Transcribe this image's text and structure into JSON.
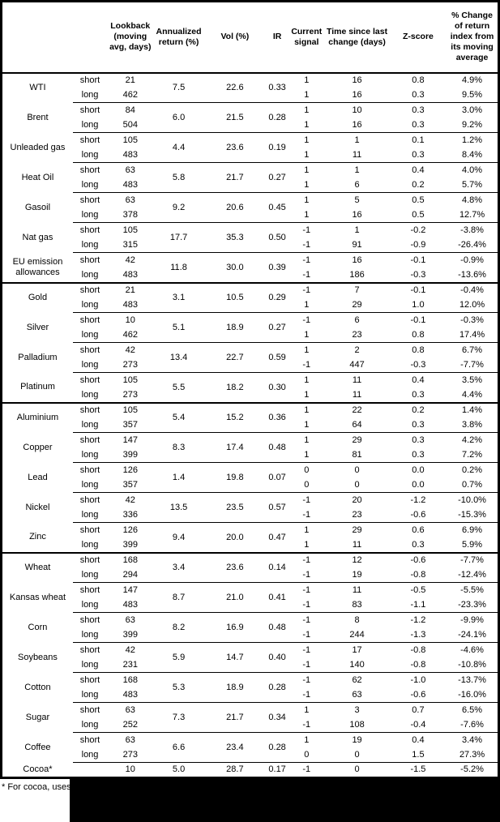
{
  "table": {
    "columns": [
      "",
      "",
      "Lookback (moving avg, days)",
      "Annualized return (%)",
      "Vol (%)",
      "IR",
      "Current signal",
      "Time since last change (days)",
      "Z-score",
      "% Change of return index from its moving average"
    ],
    "commodities": [
      {
        "name": "WTI",
        "section": false,
        "annualized": "7.5",
        "vol": "22.6",
        "ir": "0.33",
        "rows": [
          {
            "pos": "short",
            "lookback": "21",
            "signal": "1",
            "time": "16",
            "zscore": "0.8",
            "pct": "4.9%"
          },
          {
            "pos": "long",
            "lookback": "462",
            "signal": "1",
            "time": "16",
            "zscore": "0.3",
            "pct": "9.5%"
          }
        ]
      },
      {
        "name": "Brent",
        "section": false,
        "annualized": "6.0",
        "vol": "21.5",
        "ir": "0.28",
        "rows": [
          {
            "pos": "short",
            "lookback": "84",
            "signal": "1",
            "time": "10",
            "zscore": "0.3",
            "pct": "3.0%"
          },
          {
            "pos": "long",
            "lookback": "504",
            "signal": "1",
            "time": "16",
            "zscore": "0.3",
            "pct": "9.2%"
          }
        ]
      },
      {
        "name": "Unleaded gas",
        "section": false,
        "annualized": "4.4",
        "vol": "23.6",
        "ir": "0.19",
        "rows": [
          {
            "pos": "short",
            "lookback": "105",
            "signal": "1",
            "time": "1",
            "zscore": "0.1",
            "pct": "1.2%"
          },
          {
            "pos": "long",
            "lookback": "483",
            "signal": "1",
            "time": "11",
            "zscore": "0.3",
            "pct": "8.4%"
          }
        ]
      },
      {
        "name": "Heat Oil",
        "section": false,
        "annualized": "5.8",
        "vol": "21.7",
        "ir": "0.27",
        "rows": [
          {
            "pos": "short",
            "lookback": "63",
            "signal": "1",
            "time": "1",
            "zscore": "0.4",
            "pct": "4.0%"
          },
          {
            "pos": "long",
            "lookback": "483",
            "signal": "1",
            "time": "6",
            "zscore": "0.2",
            "pct": "5.7%"
          }
        ]
      },
      {
        "name": "Gasoil",
        "section": false,
        "annualized": "9.2",
        "vol": "20.6",
        "ir": "0.45",
        "rows": [
          {
            "pos": "short",
            "lookback": "63",
            "signal": "1",
            "time": "5",
            "zscore": "0.5",
            "pct": "4.8%"
          },
          {
            "pos": "long",
            "lookback": "378",
            "signal": "1",
            "time": "16",
            "zscore": "0.5",
            "pct": "12.7%"
          }
        ]
      },
      {
        "name": "Nat gas",
        "section": false,
        "annualized": "17.7",
        "vol": "35.3",
        "ir": "0.50",
        "rows": [
          {
            "pos": "short",
            "lookback": "105",
            "signal": "-1",
            "time": "1",
            "zscore": "-0.2",
            "pct": "-3.8%"
          },
          {
            "pos": "long",
            "lookback": "315",
            "signal": "-1",
            "time": "91",
            "zscore": "-0.9",
            "pct": "-26.4%"
          }
        ]
      },
      {
        "name": "EU emission allowances",
        "section": false,
        "annualized": "11.8",
        "vol": "30.0",
        "ir": "0.39",
        "rows": [
          {
            "pos": "short",
            "lookback": "42",
            "signal": "-1",
            "time": "16",
            "zscore": "-0.1",
            "pct": "-0.9%"
          },
          {
            "pos": "long",
            "lookback": "483",
            "signal": "-1",
            "time": "186",
            "zscore": "-0.3",
            "pct": "-13.6%"
          }
        ]
      },
      {
        "name": "Gold",
        "section": true,
        "annualized": "3.1",
        "vol": "10.5",
        "ir": "0.29",
        "rows": [
          {
            "pos": "short",
            "lookback": "21",
            "signal": "-1",
            "time": "7",
            "zscore": "-0.1",
            "pct": "-0.4%"
          },
          {
            "pos": "long",
            "lookback": "483",
            "signal": "1",
            "time": "29",
            "zscore": "1.0",
            "pct": "12.0%"
          }
        ]
      },
      {
        "name": "Silver",
        "section": false,
        "annualized": "5.1",
        "vol": "18.9",
        "ir": "0.27",
        "rows": [
          {
            "pos": "short",
            "lookback": "10",
            "signal": "-1",
            "time": "6",
            "zscore": "-0.1",
            "pct": "-0.3%"
          },
          {
            "pos": "long",
            "lookback": "462",
            "signal": "1",
            "time": "23",
            "zscore": "0.8",
            "pct": "17.4%"
          }
        ]
      },
      {
        "name": "Palladium",
        "section": false,
        "annualized": "13.4",
        "vol": "22.7",
        "ir": "0.59",
        "rows": [
          {
            "pos": "short",
            "lookback": "42",
            "signal": "1",
            "time": "2",
            "zscore": "0.8",
            "pct": "6.7%"
          },
          {
            "pos": "long",
            "lookback": "273",
            "signal": "-1",
            "time": "447",
            "zscore": "-0.3",
            "pct": "-7.7%"
          }
        ]
      },
      {
        "name": "Platinum",
        "section": false,
        "annualized": "5.5",
        "vol": "18.2",
        "ir": "0.30",
        "rows": [
          {
            "pos": "short",
            "lookback": "105",
            "signal": "1",
            "time": "11",
            "zscore": "0.4",
            "pct": "3.5%"
          },
          {
            "pos": "long",
            "lookback": "273",
            "signal": "1",
            "time": "11",
            "zscore": "0.3",
            "pct": "4.4%"
          }
        ]
      },
      {
        "name": "Aluminium",
        "section": true,
        "annualized": "5.4",
        "vol": "15.2",
        "ir": "0.36",
        "rows": [
          {
            "pos": "short",
            "lookback": "105",
            "signal": "1",
            "time": "22",
            "zscore": "0.2",
            "pct": "1.4%"
          },
          {
            "pos": "long",
            "lookback": "357",
            "signal": "1",
            "time": "64",
            "zscore": "0.3",
            "pct": "3.8%"
          }
        ]
      },
      {
        "name": "Copper",
        "section": false,
        "annualized": "8.3",
        "vol": "17.4",
        "ir": "0.48",
        "rows": [
          {
            "pos": "short",
            "lookback": "147",
            "signal": "1",
            "time": "29",
            "zscore": "0.3",
            "pct": "4.2%"
          },
          {
            "pos": "long",
            "lookback": "399",
            "signal": "1",
            "time": "81",
            "zscore": "0.3",
            "pct": "7.2%"
          }
        ]
      },
      {
        "name": "Lead",
        "section": false,
        "annualized": "1.4",
        "vol": "19.8",
        "ir": "0.07",
        "rows": [
          {
            "pos": "short",
            "lookback": "126",
            "signal": "0",
            "time": "0",
            "zscore": "0.0",
            "pct": "0.2%"
          },
          {
            "pos": "long",
            "lookback": "357",
            "signal": "0",
            "time": "0",
            "zscore": "0.0",
            "pct": "0.7%"
          }
        ]
      },
      {
        "name": "Nickel",
        "section": false,
        "annualized": "13.5",
        "vol": "23.5",
        "ir": "0.57",
        "rows": [
          {
            "pos": "short",
            "lookback": "42",
            "signal": "-1",
            "time": "20",
            "zscore": "-1.2",
            "pct": "-10.0%"
          },
          {
            "pos": "long",
            "lookback": "336",
            "signal": "-1",
            "time": "23",
            "zscore": "-0.6",
            "pct": "-15.3%"
          }
        ]
      },
      {
        "name": "Zinc",
        "section": false,
        "annualized": "9.4",
        "vol": "20.0",
        "ir": "0.47",
        "rows": [
          {
            "pos": "short",
            "lookback": "126",
            "signal": "1",
            "time": "29",
            "zscore": "0.6",
            "pct": "6.9%"
          },
          {
            "pos": "long",
            "lookback": "399",
            "signal": "1",
            "time": "11",
            "zscore": "0.3",
            "pct": "5.9%"
          }
        ]
      },
      {
        "name": "Wheat",
        "section": true,
        "annualized": "3.4",
        "vol": "23.6",
        "ir": "0.14",
        "rows": [
          {
            "pos": "short",
            "lookback": "168",
            "signal": "-1",
            "time": "12",
            "zscore": "-0.6",
            "pct": "-7.7%"
          },
          {
            "pos": "long",
            "lookback": "294",
            "signal": "-1",
            "time": "19",
            "zscore": "-0.8",
            "pct": "-12.4%"
          }
        ]
      },
      {
        "name": "Kansas wheat",
        "section": false,
        "annualized": "8.7",
        "vol": "21.0",
        "ir": "0.41",
        "rows": [
          {
            "pos": "short",
            "lookback": "147",
            "signal": "-1",
            "time": "11",
            "zscore": "-0.5",
            "pct": "-5.5%"
          },
          {
            "pos": "long",
            "lookback": "483",
            "signal": "-1",
            "time": "83",
            "zscore": "-1.1",
            "pct": "-23.3%"
          }
        ]
      },
      {
        "name": "Corn",
        "section": false,
        "annualized": "8.2",
        "vol": "16.9",
        "ir": "0.48",
        "rows": [
          {
            "pos": "short",
            "lookback": "63",
            "signal": "-1",
            "time": "8",
            "zscore": "-1.2",
            "pct": "-9.9%"
          },
          {
            "pos": "long",
            "lookback": "399",
            "signal": "-1",
            "time": "244",
            "zscore": "-1.3",
            "pct": "-24.1%"
          }
        ]
      },
      {
        "name": "Soybeans",
        "section": false,
        "annualized": "5.9",
        "vol": "14.7",
        "ir": "0.40",
        "rows": [
          {
            "pos": "short",
            "lookback": "42",
            "signal": "-1",
            "time": "17",
            "zscore": "-0.8",
            "pct": "-4.6%"
          },
          {
            "pos": "long",
            "lookback": "231",
            "signal": "-1",
            "time": "140",
            "zscore": "-0.8",
            "pct": "-10.8%"
          }
        ]
      },
      {
        "name": "Cotton",
        "section": false,
        "annualized": "5.3",
        "vol": "18.9",
        "ir": "0.28",
        "rows": [
          {
            "pos": "short",
            "lookback": "168",
            "signal": "-1",
            "time": "62",
            "zscore": "-1.0",
            "pct": "-13.7%"
          },
          {
            "pos": "long",
            "lookback": "483",
            "signal": "-1",
            "time": "63",
            "zscore": "-0.6",
            "pct": "-16.0%"
          }
        ]
      },
      {
        "name": "Sugar",
        "section": false,
        "annualized": "7.3",
        "vol": "21.7",
        "ir": "0.34",
        "rows": [
          {
            "pos": "short",
            "lookback": "63",
            "signal": "1",
            "time": "3",
            "zscore": "0.7",
            "pct": "6.5%"
          },
          {
            "pos": "long",
            "lookback": "252",
            "signal": "-1",
            "time": "108",
            "zscore": "-0.4",
            "pct": "-7.6%"
          }
        ]
      },
      {
        "name": "Coffee",
        "section": false,
        "annualized": "6.6",
        "vol": "23.4",
        "ir": "0.28",
        "rows": [
          {
            "pos": "short",
            "lookback": "63",
            "signal": "1",
            "time": "19",
            "zscore": "0.4",
            "pct": "3.4%"
          },
          {
            "pos": "long",
            "lookback": "273",
            "signal": "0",
            "time": "0",
            "zscore": "1.5",
            "pct": "27.3%"
          }
        ]
      },
      {
        "name": "Cocoa*",
        "section": false,
        "annualized": "5.0",
        "vol": "28.7",
        "ir": "0.17",
        "rows": [
          {
            "pos": "",
            "lookback": "10",
            "signal": "-1",
            "time": "0",
            "zscore": "-1.5",
            "pct": "-5.2%"
          }
        ]
      }
    ]
  },
  "footnote": {
    "text": "* For cocoa, uses o"
  }
}
